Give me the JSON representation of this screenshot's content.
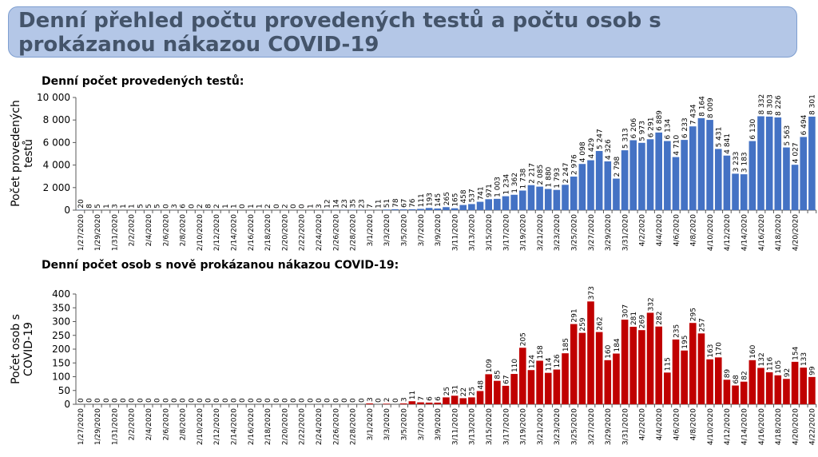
{
  "header": {
    "title": "Denní přehled počtu provedených testů a počtu osob s prokázanou nákazou COVID-19"
  },
  "colors": {
    "title_fill": "#b4c7e7",
    "title_text": "#44546a",
    "tests_bar": "#4472c4",
    "cases_bar": "#c00000"
  },
  "chart_data": [
    {
      "type": "bar",
      "title": "Denní počet provedených testů:",
      "ylabel": "Počet provedených testů",
      "xlabel": "",
      "ylim": [
        0,
        10000
      ],
      "yticks": [
        "0",
        "2 000",
        "4 000",
        "6 000",
        "8 000",
        "10 000"
      ],
      "grid": false,
      "categories_start": "1/27/2020",
      "values": [
        20,
        8,
        5,
        1,
        3,
        1,
        1,
        5,
        5,
        5,
        0,
        3,
        6,
        0,
        2,
        8,
        2,
        1,
        1,
        0,
        1,
        1,
        2,
        0,
        2,
        0,
        0,
        1,
        3,
        12,
        14,
        23,
        35,
        23,
        7,
        11,
        51,
        78,
        67,
        76,
        111,
        193,
        145,
        265,
        165,
        458,
        537,
        741,
        971,
        1003,
        1234,
        1362,
        1738,
        2217,
        2085,
        1880,
        1793,
        2247,
        2976,
        4098,
        4429,
        5247,
        4326,
        2798,
        5313,
        6206,
        5973,
        6291,
        6889,
        6134,
        4710,
        6233,
        7434,
        8164,
        8009,
        5431,
        4841,
        3233,
        3183,
        6130,
        8332,
        8303,
        8226,
        5563,
        4027,
        6494,
        8301
      ],
      "color": "#4472c4"
    },
    {
      "type": "bar",
      "title": "Denní počet osob s nově prokázanou nákazou COVID-19:",
      "ylabel": "Počet osob s COVID-19",
      "xlabel": "",
      "ylim": [
        0,
        400
      ],
      "yticks": [
        "0",
        "50",
        "100",
        "150",
        "200",
        "250",
        "300",
        "350",
        "400"
      ],
      "grid": false,
      "categories_start": "1/27/2020",
      "values": [
        0,
        0,
        0,
        0,
        0,
        0,
        0,
        0,
        0,
        0,
        0,
        0,
        0,
        0,
        0,
        0,
        0,
        0,
        0,
        0,
        0,
        0,
        0,
        0,
        0,
        0,
        0,
        0,
        0,
        0,
        0,
        0,
        0,
        0,
        3,
        0,
        2,
        0,
        3,
        11,
        7,
        6,
        6,
        25,
        31,
        22,
        25,
        48,
        109,
        85,
        67,
        110,
        205,
        124,
        158,
        114,
        126,
        185,
        291,
        259,
        373,
        262,
        160,
        184,
        307,
        281,
        269,
        332,
        282,
        115,
        235,
        195,
        295,
        257,
        163,
        170,
        89,
        68,
        82,
        160,
        132,
        116,
        105,
        92,
        154,
        133,
        99
      ],
      "color": "#c00000"
    }
  ],
  "categories": [
    "1/27/2020",
    "1/28/2020",
    "1/29/2020",
    "1/30/2020",
    "1/31/2020",
    "2/1/2020",
    "2/2/2020",
    "2/3/2020",
    "2/4/2020",
    "2/5/2020",
    "2/6/2020",
    "2/7/2020",
    "2/8/2020",
    "2/9/2020",
    "2/10/2020",
    "2/11/2020",
    "2/12/2020",
    "2/13/2020",
    "2/14/2020",
    "2/15/2020",
    "2/16/2020",
    "2/17/2020",
    "2/18/2020",
    "2/19/2020",
    "2/20/2020",
    "2/21/2020",
    "2/22/2020",
    "2/23/2020",
    "2/24/2020",
    "2/25/2020",
    "2/26/2020",
    "2/27/2020",
    "2/28/2020",
    "2/29/2020",
    "3/1/2020",
    "3/2/2020",
    "3/3/2020",
    "3/4/2020",
    "3/5/2020",
    "3/6/2020",
    "3/7/2020",
    "3/8/2020",
    "3/9/2020",
    "3/10/2020",
    "3/11/2020",
    "3/12/2020",
    "3/13/2020",
    "3/14/2020",
    "3/15/2020",
    "3/16/2020",
    "3/17/2020",
    "3/18/2020",
    "3/19/2020",
    "3/20/2020",
    "3/21/2020",
    "3/22/2020",
    "3/23/2020",
    "3/24/2020",
    "3/25/2020",
    "3/26/2020",
    "3/27/2020",
    "3/28/2020",
    "3/29/2020",
    "3/30/2020",
    "3/31/2020",
    "4/1/2020",
    "4/2/2020",
    "4/3/2020",
    "4/4/2020",
    "4/5/2020",
    "4/6/2020",
    "4/7/2020",
    "4/8/2020",
    "4/9/2020",
    "4/10/2020",
    "4/11/2020",
    "4/12/2020",
    "4/13/2020",
    "4/14/2020",
    "4/15/2020",
    "4/16/2020",
    "4/17/2020",
    "4/18/2020",
    "4/19/2020",
    "4/20/2020",
    "4/21/2020",
    "4/22/2020"
  ]
}
